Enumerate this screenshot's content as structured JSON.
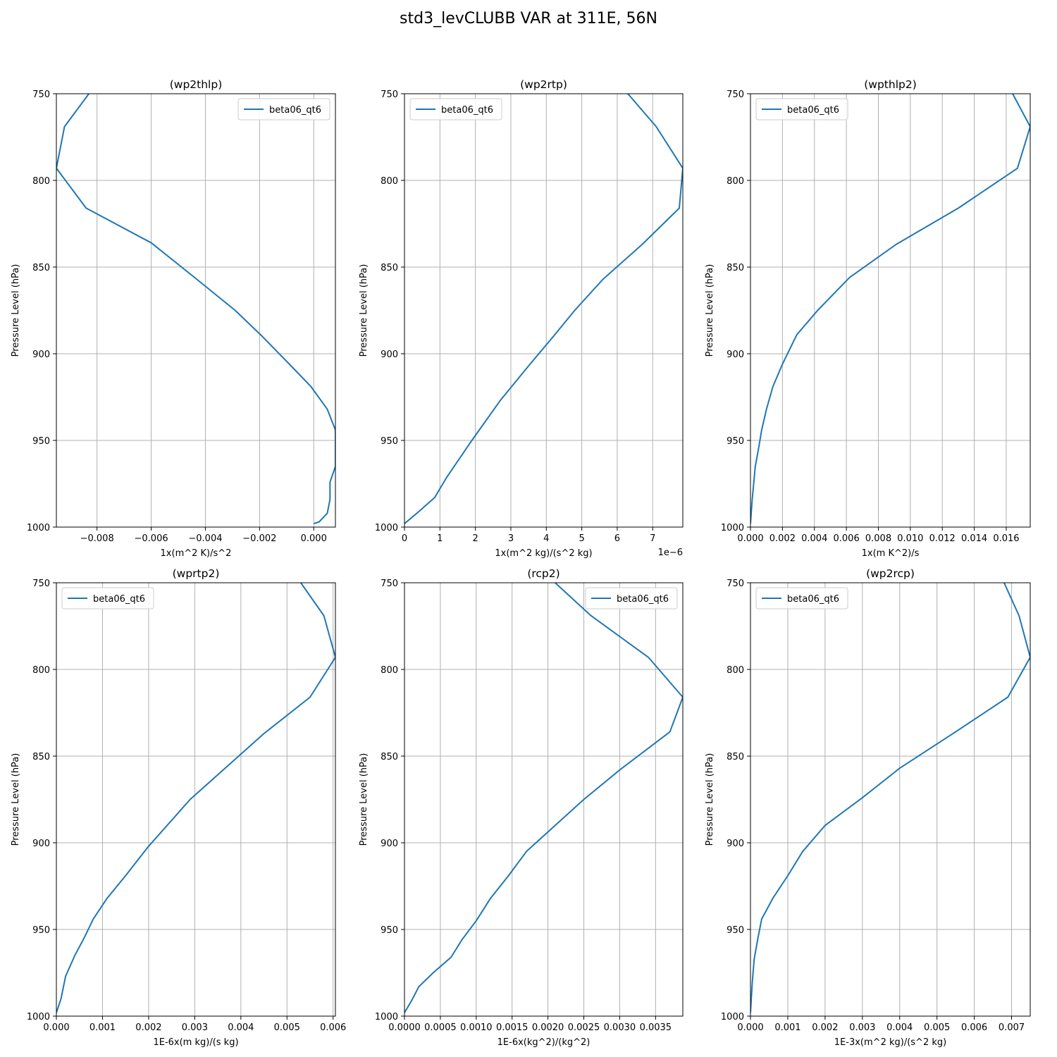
{
  "title": "std3_levCLUBB VAR at 311E, 56N",
  "colors": {
    "line": "#1f77b4",
    "grid": "#b0b0b0",
    "axis": "#000000"
  },
  "chart_data": [
    {
      "type": "line",
      "title": "(wp2thlp)",
      "xlabel": "1x(m^2 K)/s^2",
      "ylabel": "Pressure Level (hPa)",
      "xlim": [
        -0.0095,
        0.0008
      ],
      "ylim": [
        750,
        1000
      ],
      "xticks": [
        -0.008,
        -0.006,
        -0.004,
        -0.002,
        0.0
      ],
      "xtick_labels": [
        "−0.008",
        "−0.006",
        "−0.004",
        "−0.002",
        "0.000"
      ],
      "yticks": [
        750,
        800,
        850,
        900,
        950,
        1000
      ],
      "ytick_labels": [
        "750",
        "800",
        "850",
        "900",
        "950",
        "1000"
      ],
      "legend_loc": "upper right",
      "grid": true,
      "series": [
        {
          "name": "beta06_qt6",
          "x": [
            -0.0083,
            -0.0092,
            -0.0095,
            -0.0084,
            -0.006,
            -0.0044,
            -0.0029,
            -0.0019,
            -0.0009,
            -0.0001,
            0.0005,
            0.0008,
            0.0008,
            0.0008,
            0.0006,
            0.0006,
            0.0005,
            0.0002,
            0.0
          ],
          "y": [
            750,
            769,
            793,
            816,
            836,
            856,
            875,
            890,
            906,
            919,
            932,
            944,
            955,
            965,
            974,
            984,
            992,
            997,
            998
          ]
        }
      ]
    },
    {
      "type": "line",
      "title": "(wp2rtp)",
      "xlabel": "1x(m^2 kg)/(s^2 kg)",
      "ylabel": "Pressure Level (hPa)",
      "offset_text": "1e−6",
      "xlim": [
        0,
        7.85
      ],
      "ylim": [
        750,
        1000
      ],
      "xticks": [
        0,
        1,
        2,
        3,
        4,
        5,
        6,
        7
      ],
      "xtick_labels": [
        "0",
        "1",
        "2",
        "3",
        "4",
        "5",
        "6",
        "7"
      ],
      "yticks": [
        750,
        800,
        850,
        900,
        950,
        1000
      ],
      "ytick_labels": [
        "750",
        "800",
        "850",
        "900",
        "950",
        "1000"
      ],
      "legend_loc": "upper left",
      "grid": true,
      "series": [
        {
          "name": "beta06_qt6",
          "x": [
            6.3,
            7.1,
            7.85,
            7.75,
            6.7,
            5.6,
            4.8,
            4.2,
            3.5,
            2.7,
            1.9,
            1.2,
            0.85,
            0.35,
            0.0
          ],
          "y": [
            750,
            769,
            793,
            816,
            837,
            857,
            875,
            890,
            907,
            927,
            950,
            971,
            983,
            992,
            998
          ]
        }
      ]
    },
    {
      "type": "line",
      "title": "(wpthlp2)",
      "xlabel": "1x(m K^2)/s",
      "ylabel": "Pressure Level (hPa)",
      "xlim": [
        0,
        0.0175
      ],
      "ylim": [
        750,
        1000
      ],
      "xticks": [
        0.0,
        0.002,
        0.004,
        0.006,
        0.008,
        0.01,
        0.012,
        0.014,
        0.016
      ],
      "xtick_labels": [
        "0.000",
        "0.002",
        "0.004",
        "0.006",
        "0.008",
        "0.010",
        "0.012",
        "0.014",
        "0.016"
      ],
      "yticks": [
        750,
        800,
        850,
        900,
        950,
        1000
      ],
      "ytick_labels": [
        "750",
        "800",
        "850",
        "900",
        "950",
        "1000"
      ],
      "legend_loc": "upper left",
      "grid": true,
      "series": [
        {
          "name": "beta06_qt6",
          "x": [
            0.0164,
            0.0175,
            0.0167,
            0.013,
            0.0091,
            0.0062,
            0.0042,
            0.0029,
            0.002,
            0.0014,
            0.001,
            0.0007,
            0.0005,
            0.0003,
            0.0002,
            0.0001,
            0.0
          ],
          "y": [
            750,
            769,
            793,
            816,
            837,
            856,
            875,
            889,
            906,
            919,
            932,
            944,
            955,
            965,
            975,
            985,
            998
          ]
        }
      ]
    },
    {
      "type": "line",
      "title": "(wprtp2)",
      "xlabel": "1E-6x(m kg)/(s kg)",
      "ylabel": "Pressure Level (hPa)",
      "xlim": [
        0,
        0.00605
      ],
      "ylim": [
        750,
        1000
      ],
      "xticks": [
        0.0,
        0.001,
        0.002,
        0.003,
        0.004,
        0.005,
        0.006
      ],
      "xtick_labels": [
        "0.000",
        "0.001",
        "0.002",
        "0.003",
        "0.004",
        "0.005",
        "0.006"
      ],
      "yticks": [
        750,
        800,
        850,
        900,
        950,
        1000
      ],
      "ytick_labels": [
        "750",
        "800",
        "850",
        "900",
        "950",
        "1000"
      ],
      "legend_loc": "upper left",
      "grid": true,
      "series": [
        {
          "name": "beta06_qt6",
          "x": [
            0.0053,
            0.0058,
            0.00605,
            0.0055,
            0.0045,
            0.0037,
            0.0029,
            0.002,
            0.0015,
            0.0011,
            0.0008,
            0.0006,
            0.0004,
            0.0002,
            0.0001,
            0.0
          ],
          "y": [
            750,
            769,
            793,
            816,
            837,
            856,
            875,
            902,
            919,
            932,
            944,
            955,
            965,
            977,
            990,
            998
          ]
        }
      ]
    },
    {
      "type": "line",
      "title": "(rcp2)",
      "xlabel": "1E-6x(kg^2)/(kg^2)",
      "ylabel": "Pressure Level (hPa)",
      "xlim": [
        0,
        0.00388
      ],
      "ylim": [
        750,
        1000
      ],
      "xticks": [
        0.0,
        0.0005,
        0.001,
        0.0015,
        0.002,
        0.0025,
        0.003,
        0.0035
      ],
      "xtick_labels": [
        "0.0000",
        "0.0005",
        "0.0010",
        "0.0015",
        "0.0020",
        "0.0025",
        "0.0030",
        "0.0035"
      ],
      "yticks": [
        750,
        800,
        850,
        900,
        950,
        1000
      ],
      "ytick_labels": [
        "750",
        "800",
        "850",
        "900",
        "950",
        "1000"
      ],
      "legend_loc": "upper right",
      "grid": true,
      "series": [
        {
          "name": "beta06_qt6",
          "x": [
            0.0021,
            0.0026,
            0.0034,
            0.00388,
            0.0037,
            0.003,
            0.0025,
            0.0021,
            0.0017,
            0.00145,
            0.0012,
            0.001,
            0.0008,
            0.00065,
            0.0004,
            0.0002,
            0.0001,
            0.0
          ],
          "y": [
            750,
            769,
            793,
            816,
            836,
            858,
            875,
            890,
            905,
            919,
            932,
            945,
            956,
            966,
            975,
            983,
            991,
            998
          ]
        }
      ]
    },
    {
      "type": "line",
      "title": "(wp2rcp)",
      "xlabel": "1E-3x(m^2 kg)/(s^2 kg)",
      "ylabel": "Pressure Level (hPa)",
      "xlim": [
        0,
        0.0075
      ],
      "ylim": [
        750,
        1000
      ],
      "xticks": [
        0.0,
        0.001,
        0.002,
        0.003,
        0.004,
        0.005,
        0.006,
        0.007
      ],
      "xtick_labels": [
        "0.000",
        "0.001",
        "0.002",
        "0.003",
        "0.004",
        "0.005",
        "0.006",
        "0.007"
      ],
      "yticks": [
        750,
        800,
        850,
        900,
        950,
        1000
      ],
      "ytick_labels": [
        "750",
        "800",
        "850",
        "900",
        "950",
        "1000"
      ],
      "legend_loc": "upper left",
      "grid": true,
      "series": [
        {
          "name": "beta06_qt6",
          "x": [
            0.0068,
            0.0072,
            0.0075,
            0.0069,
            0.0055,
            0.004,
            0.003,
            0.002,
            0.0014,
            0.001,
            0.0006,
            0.0003,
            0.0002,
            0.0001,
            5e-05,
            0.0
          ],
          "y": [
            750,
            769,
            793,
            816,
            836,
            857,
            874,
            890,
            905,
            919,
            932,
            944,
            955,
            967,
            980,
            998
          ]
        }
      ]
    }
  ]
}
